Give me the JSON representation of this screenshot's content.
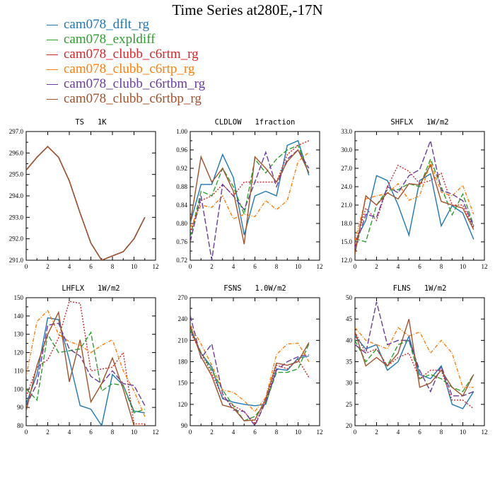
{
  "figure": {
    "title": "Time Series at280E,-17N"
  },
  "legend": [
    {
      "name": "cam078_dflt_rg",
      "color": "#1f77b4",
      "dash": ""
    },
    {
      "name": "cam078_expldiff",
      "color": "#2ca02c",
      "dash": "7,3"
    },
    {
      "name": "cam078_clubb_c6rtm_rg",
      "color": "#d62728",
      "dash": "2,2"
    },
    {
      "name": "cam078_clubb_c6rtp_rg",
      "color": "#ff7f0e",
      "dash": "5,2,1,2"
    },
    {
      "name": "cam078_clubb_c6rtbm_rg",
      "color": "#6a3d9a",
      "dash": "8,3"
    },
    {
      "name": "cam078_clubb_c6rtbp_rg",
      "color": "#a0522d",
      "dash": ""
    }
  ],
  "chart_data": [
    {
      "type": "line",
      "title": "TS   1K",
      "x": [
        0,
        1,
        2,
        3,
        4,
        5,
        6,
        7,
        8,
        9,
        10,
        11
      ],
      "xlim": [
        0,
        12
      ],
      "xticks": [
        0,
        2,
        4,
        6,
        8,
        10,
        12
      ],
      "ylim": [
        291,
        297
      ],
      "yticks": [
        291,
        292,
        293,
        294,
        295,
        296,
        297
      ],
      "ydec": 1,
      "series": [
        {
          "name": "cam078_dflt_rg",
          "values": [
            295.2,
            295.8,
            296.3,
            295.8,
            294.7,
            293.2,
            291.8,
            291.0,
            291.2,
            291.4,
            292.0,
            293.0
          ]
        },
        {
          "name": "cam078_expldiff",
          "values": [
            295.2,
            295.8,
            296.3,
            295.8,
            294.7,
            293.2,
            291.8,
            291.0,
            291.2,
            291.4,
            292.0,
            293.0
          ]
        },
        {
          "name": "cam078_clubb_c6rtm_rg",
          "values": [
            295.2,
            295.8,
            296.3,
            295.8,
            294.7,
            293.2,
            291.8,
            291.0,
            291.2,
            291.4,
            292.0,
            293.0
          ]
        },
        {
          "name": "cam078_clubb_c6rtp_rg",
          "values": [
            295.2,
            295.8,
            296.3,
            295.8,
            294.7,
            293.2,
            291.8,
            291.0,
            291.2,
            291.4,
            292.0,
            293.0
          ]
        },
        {
          "name": "cam078_clubb_c6rtbm_rg",
          "values": [
            295.2,
            295.8,
            296.3,
            295.8,
            294.7,
            293.2,
            291.8,
            291.0,
            291.2,
            291.4,
            292.0,
            293.0
          ]
        },
        {
          "name": "cam078_clubb_c6rtbp_rg",
          "values": [
            295.2,
            295.8,
            296.3,
            295.8,
            294.7,
            293.2,
            291.8,
            291.0,
            291.2,
            291.4,
            292.0,
            293.0
          ]
        }
      ]
    },
    {
      "type": "line",
      "title": "CLDLOW   1fraction",
      "x": [
        0,
        1,
        2,
        3,
        4,
        5,
        6,
        7,
        8,
        9,
        10,
        11
      ],
      "xlim": [
        0,
        12
      ],
      "xticks": [
        0,
        2,
        4,
        6,
        8,
        10,
        12
      ],
      "ylim": [
        0.72,
        1.0
      ],
      "yticks": [
        0.72,
        0.76,
        0.8,
        0.84,
        0.88,
        0.92,
        0.96,
        1.0
      ],
      "ydec": 2,
      "series": [
        {
          "name": "cam078_dflt_rg",
          "values": [
            0.8,
            0.885,
            0.885,
            0.95,
            0.9,
            0.775,
            0.86,
            0.87,
            0.86,
            0.97,
            0.98,
            0.905
          ]
        },
        {
          "name": "cam078_expldiff",
          "values": [
            0.77,
            0.87,
            0.86,
            0.92,
            0.88,
            0.82,
            0.94,
            0.91,
            0.94,
            0.96,
            0.97,
            0.91
          ]
        },
        {
          "name": "cam078_clubb_c6rtm_rg",
          "values": [
            0.78,
            0.85,
            0.86,
            0.885,
            0.86,
            0.89,
            0.89,
            0.89,
            0.89,
            0.95,
            0.97,
            0.98
          ]
        },
        {
          "name": "cam078_clubb_c6rtp_rg",
          "values": [
            0.79,
            0.84,
            0.835,
            0.86,
            0.81,
            0.82,
            0.815,
            0.85,
            0.83,
            0.85,
            0.935,
            0.955
          ]
        },
        {
          "name": "cam078_clubb_c6rtbm_rg",
          "values": [
            0.76,
            0.86,
            0.72,
            0.885,
            0.86,
            0.83,
            0.89,
            0.955,
            0.88,
            0.94,
            0.96,
            0.92
          ]
        },
        {
          "name": "cam078_clubb_c6rtbp_rg",
          "values": [
            0.8,
            0.945,
            0.89,
            0.92,
            0.87,
            0.755,
            0.945,
            0.92,
            0.89,
            0.935,
            0.96,
            0.91
          ]
        }
      ]
    },
    {
      "type": "line",
      "title": "SHFLX   1W/m2",
      "x": [
        0,
        1,
        2,
        3,
        4,
        5,
        6,
        7,
        8,
        9,
        10,
        11
      ],
      "xlim": [
        0,
        12
      ],
      "xticks": [
        0,
        2,
        4,
        6,
        8,
        10,
        12
      ],
      "ylim": [
        12,
        33
      ],
      "yticks": [
        12,
        15,
        18,
        21,
        24,
        27,
        30,
        33
      ],
      "ydec": 1,
      "series": [
        {
          "name": "cam078_dflt_rg",
          "values": [
            15.0,
            18.5,
            25.8,
            25.0,
            21.0,
            16.1,
            25.0,
            26.1,
            17.6,
            20.9,
            19.7,
            15.4
          ]
        },
        {
          "name": "cam078_expldiff",
          "values": [
            15.5,
            15.0,
            21.0,
            23.5,
            23.5,
            24.5,
            24.0,
            28.5,
            24.0,
            19.4,
            22.8,
            17.7
          ]
        },
        {
          "name": "cam078_clubb_c6rtm_rg",
          "values": [
            14.5,
            20.5,
            18.5,
            24.0,
            27.5,
            26.5,
            24.5,
            25.0,
            26.2,
            21.0,
            21.0,
            17.3
          ]
        },
        {
          "name": "cam078_clubb_c6rtp_rg",
          "values": [
            15.2,
            22.0,
            22.5,
            22.9,
            24.5,
            21.8,
            22.5,
            28.0,
            23.1,
            22.5,
            24.2,
            19.5
          ]
        },
        {
          "name": "cam078_clubb_c6rtbm_rg",
          "values": [
            14.0,
            19.5,
            19.0,
            24.0,
            23.0,
            25.8,
            26.8,
            31.5,
            23.4,
            22.8,
            21.7,
            17.5
          ]
        },
        {
          "name": "cam078_clubb_c6rtbp_rg",
          "values": [
            13.0,
            22.5,
            21.0,
            23.0,
            22.0,
            24.5,
            24.3,
            27.5,
            21.6,
            21.0,
            20.5,
            17.0
          ]
        }
      ]
    },
    {
      "type": "line",
      "title": "LHFLX   1W/m2",
      "x": [
        0,
        1,
        2,
        3,
        4,
        5,
        6,
        7,
        8,
        9,
        10,
        11
      ],
      "xlim": [
        0,
        12
      ],
      "xticks": [
        0,
        2,
        4,
        6,
        8,
        10,
        12
      ],
      "ylim": [
        80,
        150
      ],
      "yticks": [
        80,
        90,
        100,
        110,
        120,
        130,
        140,
        150
      ],
      "ydec": 0,
      "series": [
        {
          "name": "cam078_dflt_rg",
          "values": [
            92,
            108,
            139,
            138,
            116,
            91,
            89,
            80,
            108,
            102,
            88,
            87
          ]
        },
        {
          "name": "cam078_expldiff",
          "values": [
            100,
            94,
            130,
            120,
            121,
            122,
            131,
            99,
            103,
            102,
            87,
            89
          ]
        },
        {
          "name": "cam078_clubb_c6rtm_rg",
          "values": [
            96,
            112,
            116,
            128,
            148,
            147,
            110,
            111,
            112,
            120,
            81,
            81
          ]
        },
        {
          "name": "cam078_clubb_c6rtp_rg",
          "values": [
            107,
            137,
            143,
            130,
            126,
            124,
            120,
            124,
            127,
            110,
            99,
            85
          ]
        },
        {
          "name": "cam078_clubb_c6rtbm_rg",
          "values": [
            91,
            103,
            135,
            136,
            122,
            118,
            107,
            103,
            110,
            103,
            102,
            91
          ]
        },
        {
          "name": "cam078_clubb_c6rtbp_rg",
          "values": [
            88,
            113,
            130,
            142,
            104,
            127,
            93,
            103,
            117,
            100,
            80,
            80
          ]
        }
      ]
    },
    {
      "type": "line",
      "title": "FSNS   1.0W/m2",
      "x": [
        0,
        1,
        2,
        3,
        4,
        5,
        6,
        7,
        8,
        9,
        10,
        11
      ],
      "xlim": [
        0,
        12
      ],
      "xticks": [
        0,
        2,
        4,
        6,
        8,
        10,
        12
      ],
      "ylim": [
        90,
        270
      ],
      "yticks": [
        90,
        120,
        150,
        180,
        210,
        240,
        270
      ],
      "ydec": 0,
      "series": [
        {
          "name": "cam078_dflt_rg",
          "values": [
            225,
            192,
            172,
            128,
            123,
            120,
            118,
            120,
            170,
            168,
            185,
            188
          ]
        },
        {
          "name": "cam078_expldiff",
          "values": [
            226,
            193,
            168,
            140,
            118,
            97,
            103,
            122,
            165,
            165,
            170,
            205
          ]
        },
        {
          "name": "cam078_clubb_c6rtm_rg",
          "values": [
            222,
            192,
            164,
            130,
            118,
            110,
            92,
            125,
            175,
            170,
            183,
            158
          ]
        },
        {
          "name": "cam078_clubb_c6rtp_rg",
          "values": [
            232,
            205,
            175,
            140,
            137,
            125,
            110,
            130,
            190,
            205,
            206,
            180
          ]
        },
        {
          "name": "cam078_clubb_c6rtbm_rg",
          "values": [
            245,
            185,
            205,
            135,
            112,
            110,
            90,
            124,
            168,
            180,
            187,
            190
          ]
        },
        {
          "name": "cam078_clubb_c6rtbp_rg",
          "values": [
            231,
            187,
            160,
            119,
            115,
            97,
            98,
            128,
            178,
            175,
            180,
            207
          ]
        }
      ]
    },
    {
      "type": "line",
      "title": "FLNS   1W/m2",
      "x": [
        0,
        1,
        2,
        3,
        4,
        5,
        6,
        7,
        8,
        9,
        10,
        11
      ],
      "xlim": [
        0,
        12
      ],
      "xticks": [
        0,
        2,
        4,
        6,
        8,
        10,
        12
      ],
      "ylim": [
        20,
        50
      ],
      "yticks": [
        20,
        25,
        30,
        35,
        40,
        45,
        50
      ],
      "ydec": 0,
      "series": [
        {
          "name": "cam078_dflt_rg",
          "values": [
            41,
            38,
            39,
            33,
            35,
            41,
            32,
            31,
            34,
            25,
            24,
            28
          ]
        },
        {
          "name": "cam078_expldiff",
          "values": [
            40,
            35,
            38,
            34,
            39,
            40,
            31,
            32,
            31,
            29,
            28,
            32
          ]
        },
        {
          "name": "cam078_clubb_c6rtm_rg",
          "values": [
            42,
            37,
            38,
            34,
            36,
            37,
            31,
            33,
            33,
            26,
            26,
            24
          ]
        },
        {
          "name": "cam078_clubb_c6rtp_rg",
          "values": [
            43,
            40,
            39,
            38,
            43,
            41,
            42,
            37,
            40,
            37,
            29,
            29
          ]
        },
        {
          "name": "cam078_clubb_c6rtbm_rg",
          "values": [
            39,
            37,
            49,
            39,
            40,
            40,
            33,
            28,
            34,
            27,
            27,
            28
          ]
        },
        {
          "name": "cam078_clubb_c6rtbp_rg",
          "values": [
            42,
            34,
            36,
            34,
            37,
            45,
            29,
            30,
            33,
            29,
            27,
            32
          ]
        }
      ]
    }
  ]
}
